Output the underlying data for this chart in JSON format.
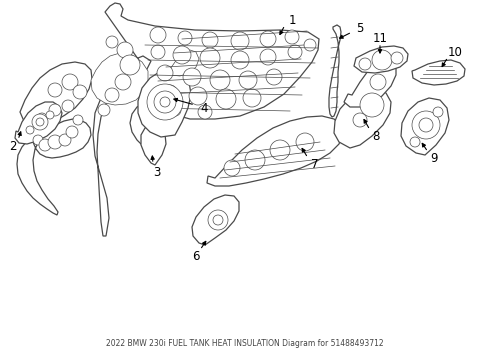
{
  "title": "2022 BMW 230i FUEL TANK HEAT INSULATION Diagram for 51488493712",
  "background_color": "#ffffff",
  "line_color": "#4a4a4a",
  "label_color": "#000000",
  "fig_width": 4.9,
  "fig_height": 3.6,
  "dpi": 100,
  "label_fontsize": 8.5,
  "title_fontsize": 5.5,
  "lw_main": 0.9,
  "lw_thin": 0.5,
  "lw_inner": 0.4
}
